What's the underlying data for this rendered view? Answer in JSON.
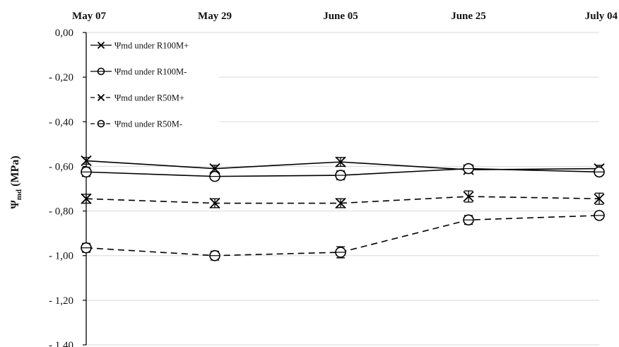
{
  "chart_data": {
    "type": "line",
    "x": [
      "May 07",
      "May 29",
      "June 05",
      "June 25",
      "July 04"
    ],
    "ylabel": {
      "main": "Ψ",
      "sub": "md",
      "unit": " (MPa)"
    },
    "ylim": [
      -1.4,
      0
    ],
    "yticks": [
      0,
      -0.2,
      -0.4,
      -0.6,
      -0.8,
      -1.0,
      -1.2,
      -1.4
    ],
    "ytick_labels": [
      "0,00",
      "- 0,20",
      "- 0,40",
      "- 0,60",
      "- 0,80",
      "- 1,00",
      "- 1,20",
      "- 1,40"
    ],
    "x_axis_position": "top",
    "grid": "horizontal",
    "legend_position": "top-left",
    "series": [
      {
        "name": "Ψmd under R100M+",
        "marker": "x",
        "dash": "solid",
        "values": [
          -0.575,
          -0.61,
          -0.58,
          -0.615,
          -0.61
        ],
        "err": [
          0.015,
          0.015,
          0.02,
          0.015,
          0.015
        ]
      },
      {
        "name": "Ψmd under R100M-",
        "marker": "o",
        "dash": "solid",
        "values": [
          -0.625,
          -0.645,
          -0.64,
          -0.61,
          -0.625
        ],
        "err": [
          0.02,
          0.015,
          0.02,
          0.015,
          0.015
        ]
      },
      {
        "name": "Ψmd under R50M+",
        "marker": "x",
        "dash": "dashed",
        "values": [
          -0.745,
          -0.765,
          -0.765,
          -0.735,
          -0.745
        ],
        "err": [
          0.02,
          0.02,
          0.02,
          0.025,
          0.025
        ]
      },
      {
        "name": "Ψmd under R50M-",
        "marker": "o",
        "dash": "dashed",
        "values": [
          -0.965,
          -1.0,
          -0.985,
          -0.84,
          -0.82
        ],
        "err": [
          0.02,
          0.02,
          0.025,
          0.02,
          0.015
        ]
      }
    ]
  }
}
